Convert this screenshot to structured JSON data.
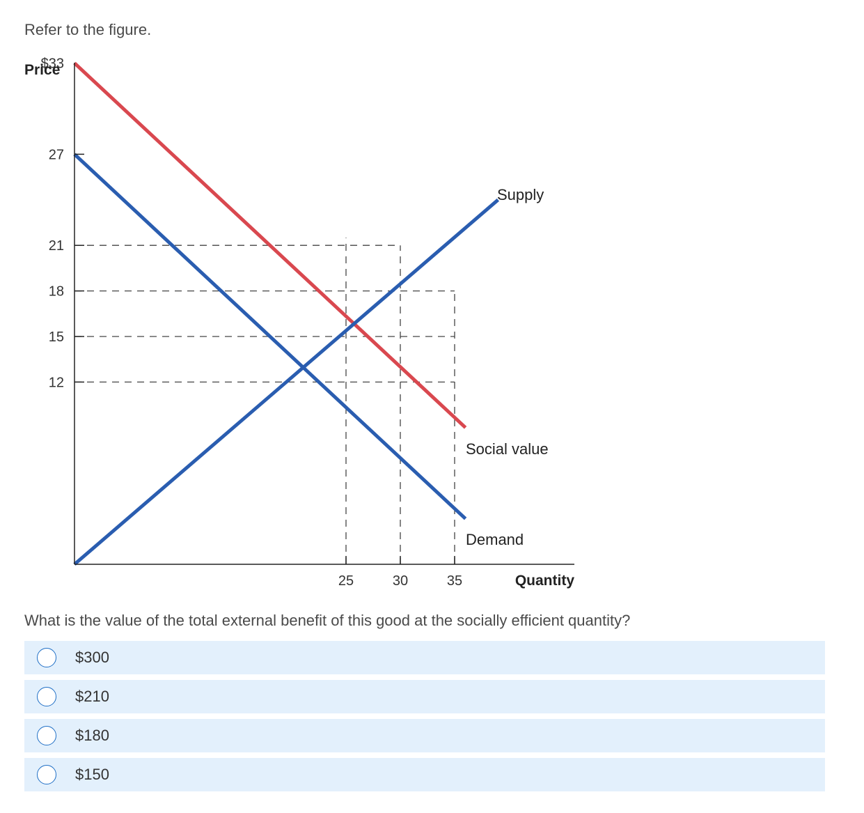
{
  "intro": "Refer to the figure.",
  "question": "What is the value of the total external benefit of this good at the socially efficient quantity?",
  "options": [
    {
      "label": "$300"
    },
    {
      "label": "$210"
    },
    {
      "label": "$180"
    },
    {
      "label": "$150"
    }
  ],
  "colors": {
    "supply": "#2a5db0",
    "demand": "#2a5db0",
    "social_value": "#d9484f",
    "option_bg": "#e3f0fc",
    "radio_border": "#1f6fc6"
  },
  "chart_data": {
    "type": "line",
    "xlabel": "Quantity",
    "ylabel": "Price",
    "ylim": [
      0,
      33
    ],
    "xlim": [
      0,
      46
    ],
    "y_ticks": [
      {
        "value": 33,
        "label": "$33"
      },
      {
        "value": 27,
        "label": "27"
      },
      {
        "value": 21,
        "label": "21"
      },
      {
        "value": 18,
        "label": "18"
      },
      {
        "value": 15,
        "label": "15"
      },
      {
        "value": 12,
        "label": "12"
      }
    ],
    "x_ticks": [
      {
        "value": 25,
        "label": "25"
      },
      {
        "value": 30,
        "label": "30"
      },
      {
        "value": 35,
        "label": "35"
      }
    ],
    "series": [
      {
        "name": "Social value",
        "color": "#d9484f",
        "points": [
          [
            0,
            33
          ],
          [
            36,
            9
          ]
        ]
      },
      {
        "name": "Demand",
        "color": "#2a5db0",
        "points": [
          [
            0,
            27
          ],
          [
            36,
            3
          ]
        ]
      },
      {
        "name": "Supply",
        "color": "#2a5db0",
        "points": [
          [
            0,
            0
          ],
          [
            39,
            24
          ]
        ]
      }
    ],
    "guides": {
      "horizontal": [
        {
          "y": 21,
          "x_end": 30
        },
        {
          "y": 18,
          "x_end": 35
        },
        {
          "y": 15,
          "x_end": 35
        },
        {
          "y": 12,
          "x_end": 35
        }
      ],
      "vertical": [
        {
          "x": 25,
          "y_end": 21.5
        },
        {
          "x": 30,
          "y_end": 21
        },
        {
          "x": 35,
          "y_end": 18
        }
      ]
    },
    "grid": false,
    "legend": "none"
  }
}
